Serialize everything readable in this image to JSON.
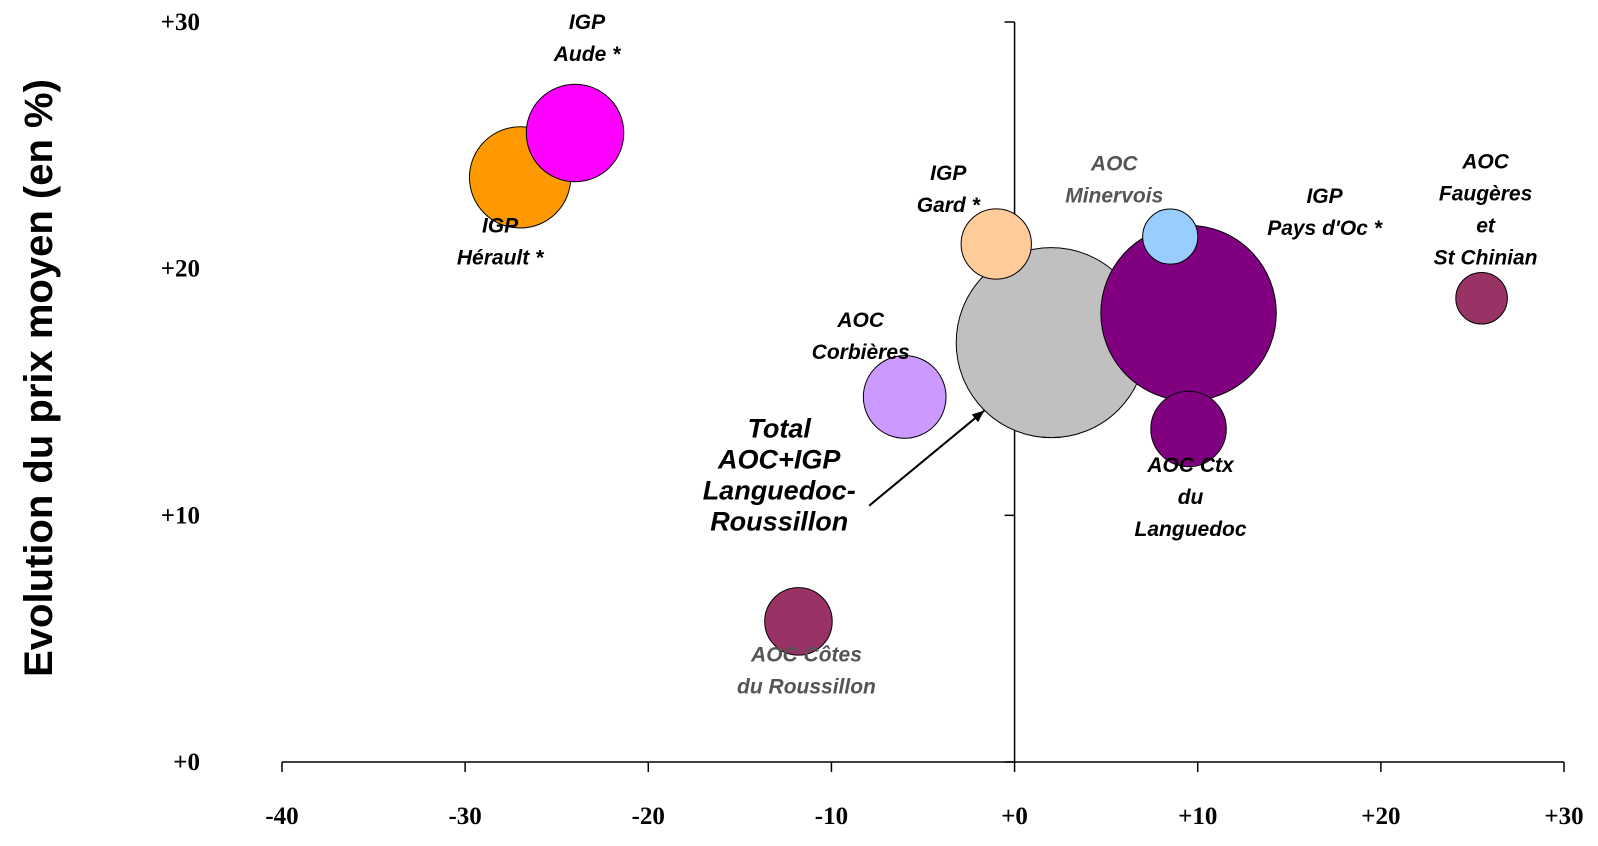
{
  "chart_data": {
    "type": "scatter",
    "subtype": "bubble",
    "xlabel": "",
    "ylabel": "Evolution du prix moyen (en %)",
    "xlim": [
      -40,
      30
    ],
    "ylim": [
      0,
      30
    ],
    "x_ticks": [
      "-40",
      "-30",
      "-20",
      "-10",
      "+0",
      "+10",
      "+20",
      "+30"
    ],
    "y_ticks": [
      "+0",
      "+10",
      "+20",
      "+30"
    ],
    "grid": false,
    "legend": "none",
    "points": [
      {
        "label": [
          "IGP",
          "Aude *"
        ],
        "x": -24,
        "y": 25.5,
        "size": 25,
        "color": "#ff00ff",
        "label_color": "#000000"
      },
      {
        "label": [
          "IGP",
          "Hérault *"
        ],
        "x": -27,
        "y": 23.7,
        "size": 27,
        "color": "#ff9900",
        "label_color": "#000000"
      },
      {
        "label": [
          "IGP",
          "Gard *"
        ],
        "x": -1,
        "y": 21,
        "size": 13,
        "color": "#ffcc99",
        "label_color": "#000000"
      },
      {
        "label": [
          "AOC",
          "Minervois"
        ],
        "x": 8.5,
        "y": 21.3,
        "size": 8,
        "color": "#99ccff",
        "label_color": "#555555"
      },
      {
        "label": [
          "IGP",
          "Pays d'Oc *"
        ],
        "x": 9.5,
        "y": 18.2,
        "size": 81,
        "color": "#800080",
        "label_color": "#000000"
      },
      {
        "label": [
          "AOC",
          "Faugères",
          "et",
          "St Chinian"
        ],
        "x": 25.5,
        "y": 18.8,
        "size": 7,
        "color": "#993366",
        "label_color": "#000000"
      },
      {
        "label": [
          "Total",
          "AOC+IGP",
          "Languedoc-",
          "Roussillon"
        ],
        "x": 2,
        "y": 17,
        "size": 95,
        "color": "#c0c0c0",
        "label_color": "#000000"
      },
      {
        "label": [
          "AOC",
          "Corbières"
        ],
        "x": -6,
        "y": 14.8,
        "size": 18,
        "color": "#cc99ff",
        "label_color": "#000000"
      },
      {
        "label": [
          "AOC Ctx",
          "du",
          "Languedoc"
        ],
        "x": 9.5,
        "y": 13.5,
        "size": 15,
        "color": "#800080",
        "label_color": "#000000"
      },
      {
        "label": [
          "AOC Côtes",
          "du Roussillon"
        ],
        "x": -11.8,
        "y": 5.7,
        "size": 12,
        "color": "#993366",
        "label_color": "#555555"
      }
    ]
  }
}
